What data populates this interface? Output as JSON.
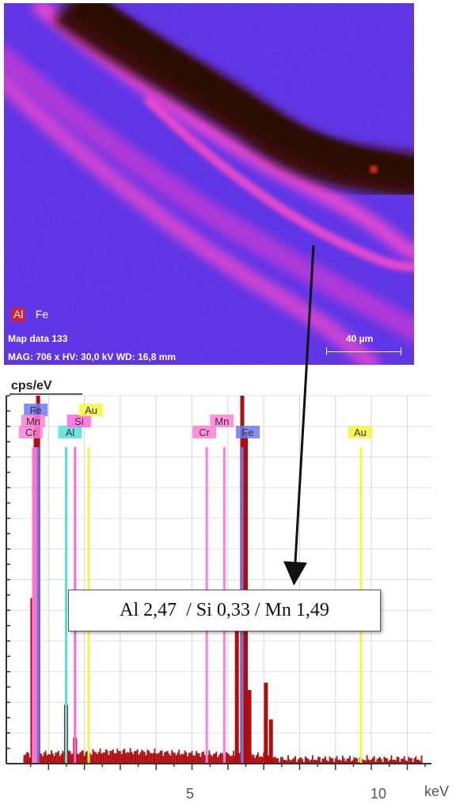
{
  "map": {
    "legend": [
      {
        "label": "Al",
        "color": "#e02020"
      },
      {
        "label": "Fe",
        "color": "#2d2df0"
      }
    ],
    "title": "Map data 133",
    "info": "MAG: 706 x HV: 30,0 kV WD: 16,8 mm",
    "scale_label": "40 µm"
  },
  "annotation": "Al 2,47  / Si 0,33 / Mn 1,49",
  "chart_data": {
    "type": "bar",
    "xlabel": "keV",
    "ylabel": "cps/eV",
    "xlim": [
      0,
      11.5
    ],
    "x_ticks": [
      5,
      10
    ],
    "grid": true,
    "element_markers": [
      {
        "element": "Fe",
        "energy": 0.71,
        "color": "#6f78f5"
      },
      {
        "element": "Mn",
        "energy": 0.64,
        "color": "#ff7fd6"
      },
      {
        "element": "Cr",
        "energy": 0.57,
        "color": "#ff7fd6"
      },
      {
        "element": "Al",
        "energy": 1.49,
        "color": "#55e0e0"
      },
      {
        "element": "Si",
        "energy": 1.74,
        "color": "#ff66dd"
      },
      {
        "element": "Au",
        "energy": 2.12,
        "color": "#f6f640"
      },
      {
        "element": "Cr",
        "energy": 5.41,
        "color": "#ff7fd6"
      },
      {
        "element": "Mn",
        "energy": 5.9,
        "color": "#ff7fd6"
      },
      {
        "element": "Fe",
        "energy": 6.4,
        "color": "#6f78f5"
      },
      {
        "element": "Au",
        "energy": 9.71,
        "color": "#f6f640"
      }
    ],
    "peaks": [
      {
        "energy": 0.55,
        "value": 0.45
      },
      {
        "energy": 0.64,
        "value": 0.97
      },
      {
        "energy": 0.71,
        "value": 1.0
      },
      {
        "energy": 1.49,
        "value": 0.16
      },
      {
        "energy": 1.74,
        "value": 0.07
      },
      {
        "energy": 6.25,
        "value": 0.43
      },
      {
        "energy": 6.4,
        "value": 1.0
      },
      {
        "energy": 6.5,
        "value": 0.9
      },
      {
        "energy": 6.6,
        "value": 0.2
      },
      {
        "energy": 7.06,
        "value": 0.22
      },
      {
        "energy": 7.2,
        "value": 0.12
      }
    ]
  }
}
